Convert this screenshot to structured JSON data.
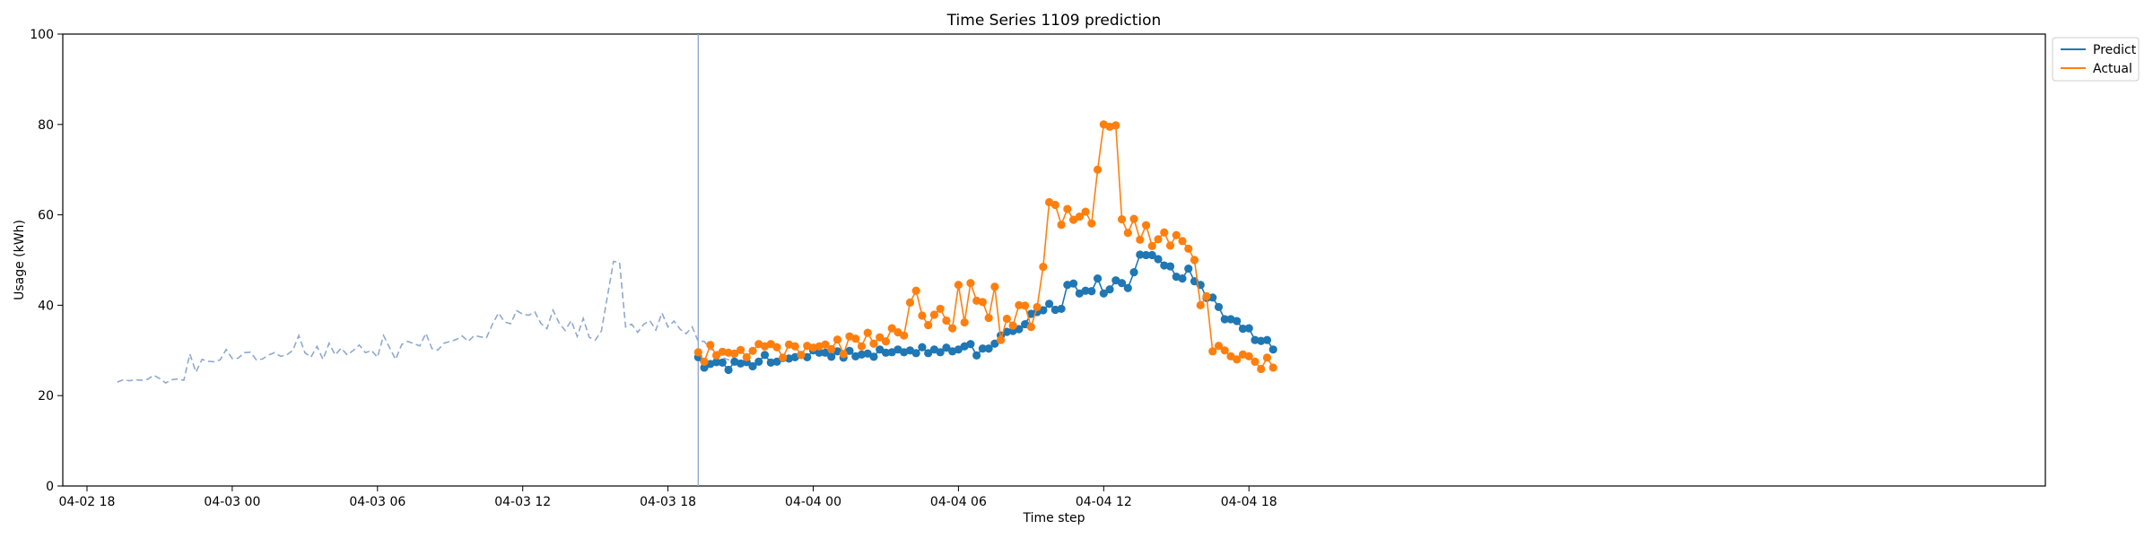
{
  "chart_data": {
    "type": "line",
    "title": "Time Series 1109 prediction",
    "xlabel": "Time step",
    "ylabel": "Usage (kWh)",
    "ylim": [
      0,
      100
    ],
    "xlim_hours": [
      -7.0,
      74.9
    ],
    "x_unit": "hours since 04-03 00:00",
    "yticks": [
      0,
      20,
      40,
      60,
      80,
      100
    ],
    "xticks": [
      {
        "hour": -6,
        "label": "04-02 18"
      },
      {
        "hour": 0,
        "label": "04-03 00"
      },
      {
        "hour": 6,
        "label": "04-03 06"
      },
      {
        "hour": 12,
        "label": "04-03 12"
      },
      {
        "hour": 18,
        "label": "04-03 18"
      },
      {
        "hour": 24,
        "label": "04-04 00"
      },
      {
        "hour": 30,
        "label": "04-04 06"
      },
      {
        "hour": 36,
        "label": "04-04 12"
      },
      {
        "hour": 42,
        "label": "04-04 18"
      }
    ],
    "vertical_line_hour": 19.25,
    "legend": {
      "position": "outside-top-right",
      "entries": [
        "Predict",
        "Actual"
      ]
    },
    "colors": {
      "predict": "#1f77b4",
      "actual": "#ff7f0e",
      "history": "#8fa9cf",
      "vline": "#8fa9cf"
    },
    "history": {
      "start_hour": -4.75,
      "step_hours": 0.25,
      "values": [
        23.0,
        23.5,
        23.3,
        23.5,
        23.4,
        23.6,
        24.5,
        23.8,
        22.8,
        23.5,
        23.7,
        23.4,
        29.2,
        25.2,
        28.0,
        27.6,
        27.5,
        27.9,
        30.2,
        28.2,
        28.3,
        29.5,
        29.6,
        27.9,
        28.1,
        29.0,
        29.5,
        28.7,
        29.0,
        30.0,
        33.3,
        29.5,
        28.5,
        30.9,
        28.0,
        31.6,
        29.0,
        30.5,
        29.0,
        30.0,
        31.2,
        29.5,
        30.0,
        28.5,
        33.3,
        30.6,
        28.0,
        31.3,
        32.0,
        31.5,
        31.0,
        33.8,
        30.4,
        30.1,
        31.6,
        32.0,
        32.4,
        33.2,
        32.0,
        33.3,
        33.0,
        32.8,
        35.8,
        38.3,
        36.3,
        35.9,
        38.8,
        38.0,
        37.8,
        38.5,
        36.0,
        34.8,
        38.9,
        36.1,
        34.4,
        36.6,
        33.1,
        37.1,
        32.9,
        32.3,
        34.3,
        42.0,
        49.7,
        49.5,
        35.2,
        35.8,
        34.0,
        35.8,
        36.6,
        34.5,
        38.3,
        35.2,
        36.5,
        34.7,
        33.7,
        35.2,
        32.0,
        32.0,
        30.2,
        30.0,
        28.4,
        27.9,
        28.6
      ]
    },
    "series": [
      {
        "name": "Predict",
        "start_hour": 19.25,
        "step_hours": 0.25,
        "values": [
          28.5,
          26.2,
          27.0,
          27.4,
          27.3,
          25.7,
          27.5,
          27.1,
          27.4,
          26.5,
          27.5,
          29.0,
          27.3,
          27.5,
          28.3,
          28.2,
          28.5,
          29.0,
          28.5,
          30.0,
          29.5,
          29.5,
          28.6,
          29.8,
          28.4,
          29.9,
          28.7,
          29.1,
          29.3,
          28.6,
          30.2,
          29.5,
          29.6,
          30.2,
          29.6,
          30.0,
          29.4,
          30.7,
          29.4,
          30.2,
          29.6,
          30.6,
          29.8,
          30.2,
          30.9,
          31.4,
          28.9,
          30.4,
          30.4,
          31.5,
          33.3,
          34.1,
          34.3,
          34.7,
          35.8,
          38.1,
          38.5,
          38.9,
          40.3,
          39.0,
          39.2,
          44.5,
          44.8,
          42.6,
          43.2,
          43.1,
          45.9,
          42.6,
          43.5,
          45.5,
          44.9,
          43.8,
          47.3,
          51.2,
          51.1,
          51.1,
          50.2,
          48.8,
          48.6,
          46.3,
          45.9,
          48.1,
          45.3,
          44.5,
          41.6,
          41.7,
          39.6,
          36.9,
          36.9,
          36.5,
          34.8,
          34.9,
          32.3,
          32.1,
          32.3,
          30.2
        ]
      },
      {
        "name": "Actual",
        "start_hour": 19.25,
        "step_hours": 0.25,
        "values": [
          29.6,
          27.5,
          31.2,
          28.9,
          29.7,
          29.5,
          29.3,
          30.1,
          28.5,
          29.9,
          31.4,
          30.9,
          31.4,
          30.7,
          28.4,
          31.3,
          30.9,
          29.0,
          31.0,
          30.6,
          30.9,
          31.3,
          30.3,
          32.4,
          29.2,
          33.1,
          32.6,
          30.9,
          33.9,
          31.5,
          32.9,
          32.0,
          34.9,
          34.0,
          33.3,
          40.6,
          43.2,
          37.7,
          35.6,
          37.9,
          39.2,
          36.6,
          34.9,
          44.5,
          36.2,
          44.9,
          41.0,
          40.7,
          37.2,
          44.1,
          32.3,
          37.0,
          35.5,
          40.0,
          39.9,
          35.2,
          39.6,
          48.5,
          62.8,
          62.2,
          57.8,
          61.3,
          58.9,
          59.6,
          60.7,
          58.1,
          70.0,
          80.0,
          79.5,
          79.8,
          59.0,
          56.0,
          59.1,
          54.5,
          57.7,
          53.1,
          54.6,
          56.1,
          53.2,
          55.5,
          54.2,
          52.5,
          50.0,
          40.0,
          42.0,
          29.8,
          31.0,
          30.0,
          28.7,
          28.0,
          29.1,
          28.7,
          27.5,
          25.9,
          28.4,
          26.2
        ]
      }
    ]
  }
}
